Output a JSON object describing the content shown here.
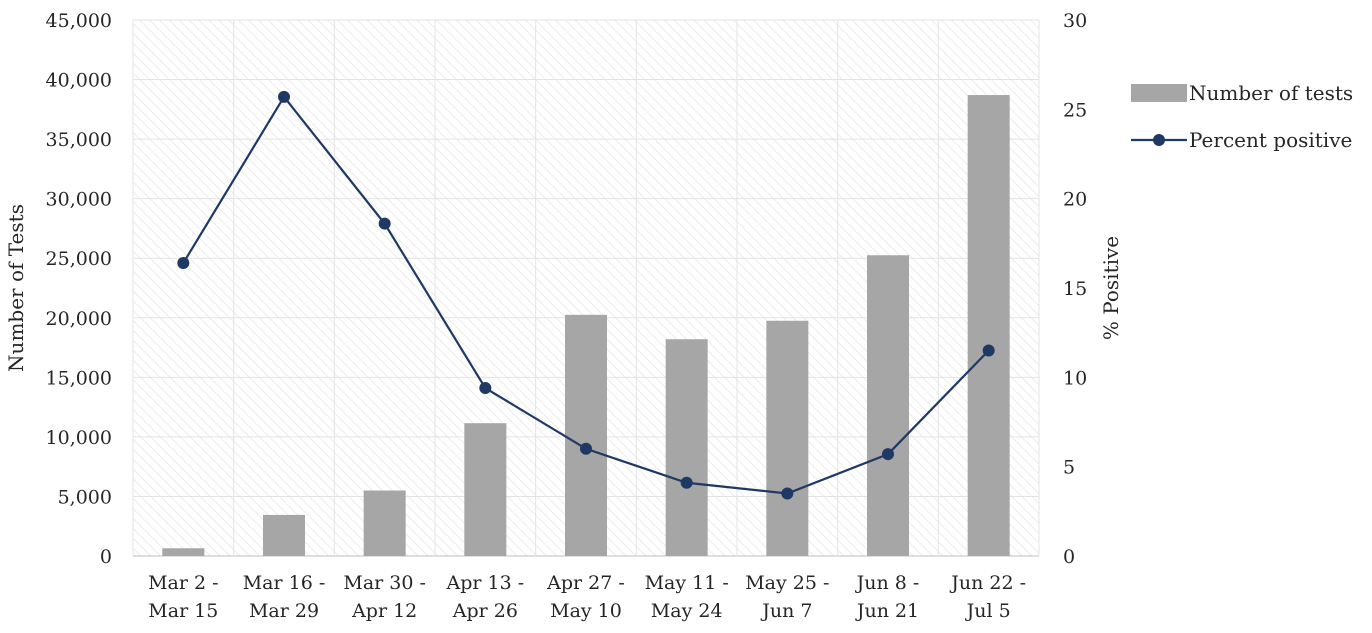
{
  "chart_data": {
    "type": "bar",
    "categories": [
      [
        "Mar 2 -",
        "Mar 15"
      ],
      [
        "Mar 16 -",
        "Mar 29"
      ],
      [
        "Mar 30 -",
        "Apr 12"
      ],
      [
        "Apr 13 -",
        "Apr 26"
      ],
      [
        "Apr 27 -",
        "May 10"
      ],
      [
        "May 11 -",
        "May 24"
      ],
      [
        "May 25 -",
        "Jun 7"
      ],
      [
        "Jun 8 -",
        "Jun 21"
      ],
      [
        "Jun 22 -",
        "Jul 5"
      ]
    ],
    "series": [
      {
        "name": "Number of tests",
        "type": "bar",
        "axis": "left",
        "color": "#a6a6a6",
        "values": [
          650,
          3450,
          5500,
          11150,
          20250,
          18200,
          19750,
          25250,
          38700
        ]
      },
      {
        "name": "Percent positive",
        "type": "line",
        "axis": "right",
        "color": "#1f3864",
        "values": [
          16.4,
          25.7,
          18.6,
          9.4,
          6.0,
          4.1,
          3.5,
          5.7,
          11.5
        ]
      }
    ],
    "ylabel": "Number of Tests",
    "ylim": [
      0,
      45000
    ],
    "yticks": [
      "0",
      "5,000",
      "10,000",
      "15,000",
      "20,000",
      "25,000",
      "30,000",
      "35,000",
      "40,000",
      "45,000"
    ],
    "y2label": "% Positive",
    "y2lim": [
      0,
      30
    ],
    "y2ticks": [
      "0",
      "5",
      "10",
      "15",
      "20",
      "25",
      "30"
    ],
    "grid": true,
    "legend": "right"
  }
}
